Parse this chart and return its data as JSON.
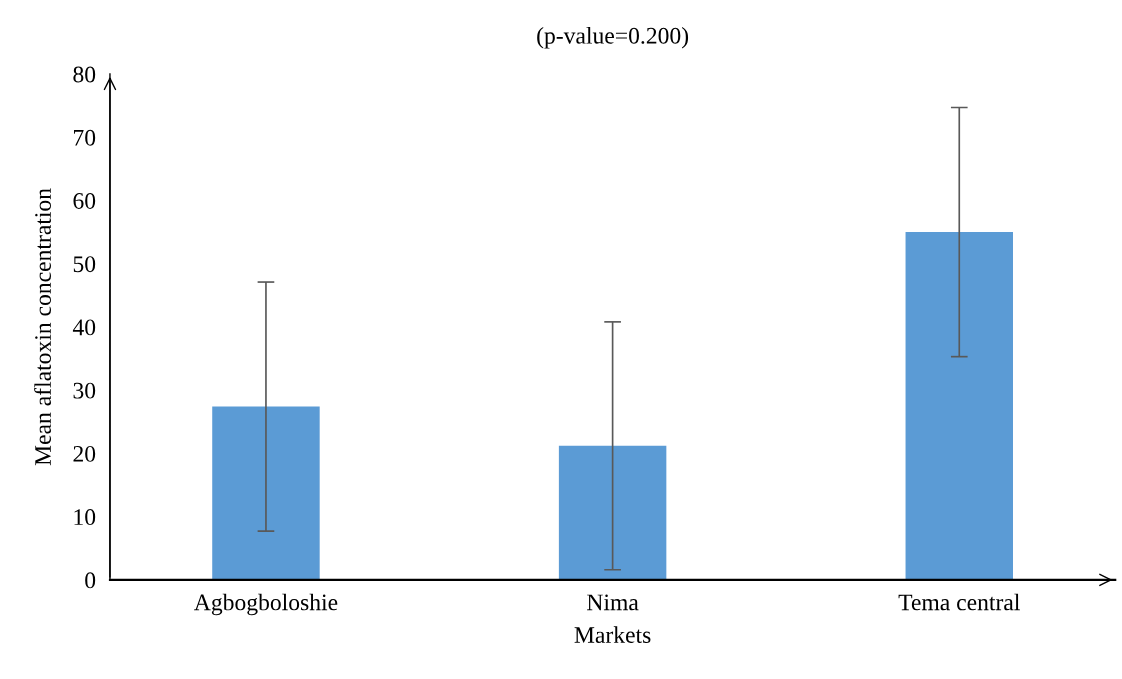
{
  "chart_data": {
    "type": "bar",
    "title": "(p-value=0.200)",
    "xlabel": "Markets",
    "ylabel": "Mean aflatoxin concentration",
    "categories": [
      "Agbogboloshie",
      "Nima",
      "Tema central"
    ],
    "values": [
      27.4,
      21.2,
      55.0
    ],
    "errors": [
      19.7,
      19.6,
      19.7
    ],
    "color": "#5b9bd5",
    "ylim": [
      0,
      80
    ],
    "yticks": [
      0,
      10,
      20,
      30,
      40,
      50,
      60,
      70,
      80
    ],
    "grid": false
  }
}
